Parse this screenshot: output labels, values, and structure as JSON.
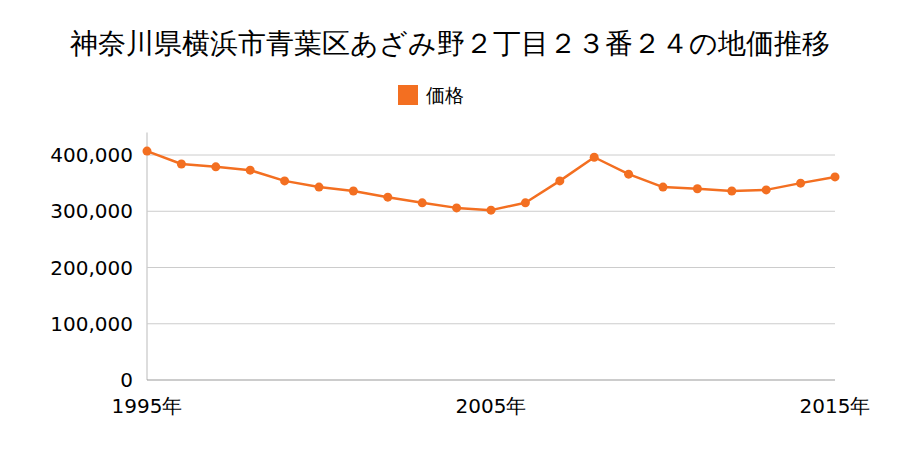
{
  "chart_data": {
    "type": "line",
    "title": "神奈川県横浜市青葉区あざみ野２丁目２３番２４の地価推移",
    "x": [
      1995,
      1996,
      1997,
      1998,
      1999,
      2000,
      2001,
      2002,
      2003,
      2004,
      2005,
      2006,
      2007,
      2008,
      2009,
      2010,
      2011,
      2012,
      2013,
      2014,
      2015
    ],
    "series": [
      {
        "name": "価格",
        "color": "#f36f21",
        "marker": "circle",
        "line_style": "solid",
        "values": [
          407000,
          384000,
          379000,
          373000,
          354000,
          343000,
          336000,
          325000,
          315000,
          306000,
          302000,
          315000,
          354000,
          396000,
          366000,
          343000,
          340000,
          336000,
          338000,
          350000,
          361000
        ]
      }
    ],
    "xlim": [
      1995,
      2015
    ],
    "xticks": [
      {
        "value": 1995,
        "label": "1995年"
      },
      {
        "value": 2005,
        "label": "2005年"
      },
      {
        "value": 2015,
        "label": "2015年"
      }
    ],
    "ylim": [
      0,
      440000
    ],
    "yticks": [
      0,
      {
        "value": 100000,
        "label": "100,000"
      },
      {
        "value": 200000,
        "label": "200,000"
      },
      {
        "value": 300000,
        "label": "300,000"
      },
      {
        "value": 400000,
        "label": "400,000"
      }
    ],
    "grid": true,
    "legend": "top"
  }
}
